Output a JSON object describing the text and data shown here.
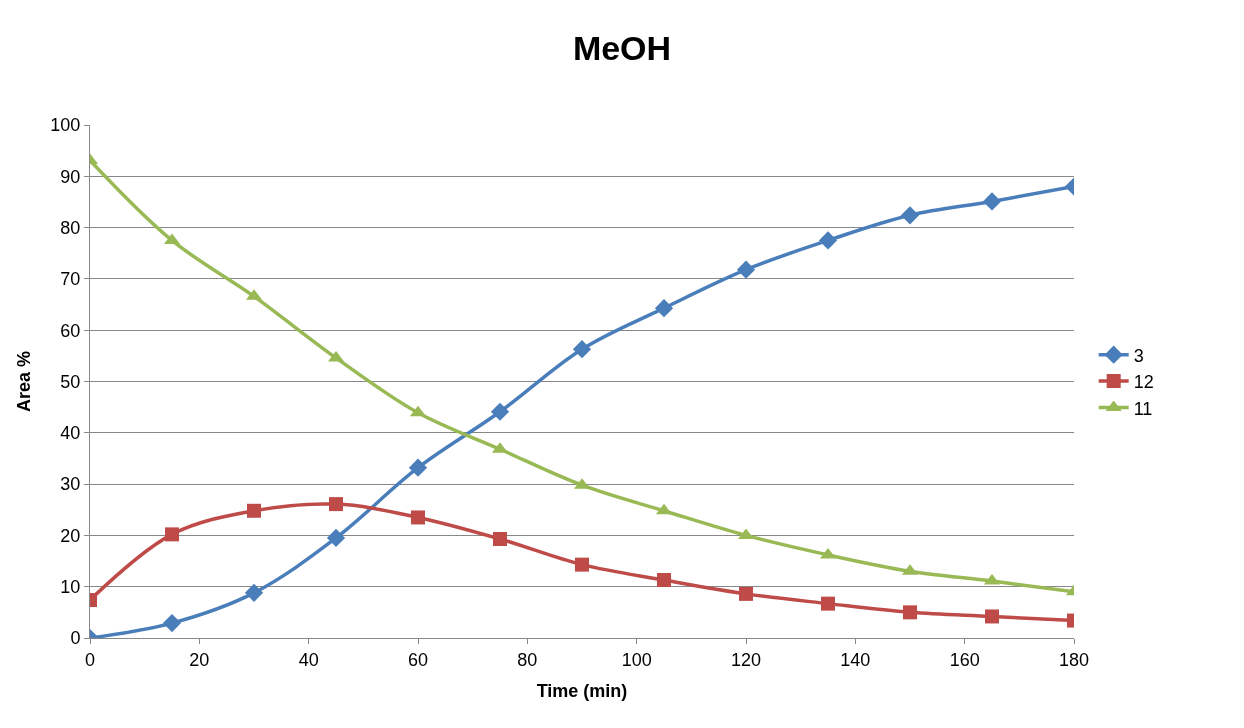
{
  "chart_data": {
    "type": "line",
    "title": "MeOH",
    "xlabel": "Time (min)",
    "ylabel": "Area %",
    "x": [
      0,
      15,
      30,
      45,
      60,
      75,
      90,
      105,
      120,
      135,
      150,
      165,
      180
    ],
    "series": [
      {
        "name": "3",
        "color": "#4a7ebb",
        "marker": "diamond",
        "values": [
          0,
          2.9,
          8.8,
          19.5,
          33.2,
          44.1,
          56.3,
          64.3,
          71.8,
          77.5,
          82.4,
          85.1,
          88
        ]
      },
      {
        "name": "12",
        "color": "#be4b48",
        "marker": "square",
        "values": [
          7.4,
          20.2,
          24.8,
          26.1,
          23.5,
          19.3,
          14.3,
          11.3,
          8.6,
          6.7,
          5.0,
          4.2,
          3.4
        ]
      },
      {
        "name": "11",
        "color": "#98b954",
        "marker": "triangle",
        "values": [
          93.1,
          77.5,
          66.6,
          54.6,
          43.9,
          36.8,
          29.8,
          24.8,
          20.0,
          16.2,
          13.0,
          11.1,
          9.0
        ]
      }
    ],
    "xlim": [
      0,
      180
    ],
    "xticks": [
      0,
      20,
      40,
      60,
      80,
      100,
      120,
      140,
      160,
      180
    ],
    "ylim": [
      0,
      100
    ],
    "yticks": [
      0,
      10,
      20,
      30,
      40,
      50,
      60,
      70,
      80,
      90,
      100
    ],
    "grid": "y",
    "legend": "right",
    "line_style": "solid"
  }
}
